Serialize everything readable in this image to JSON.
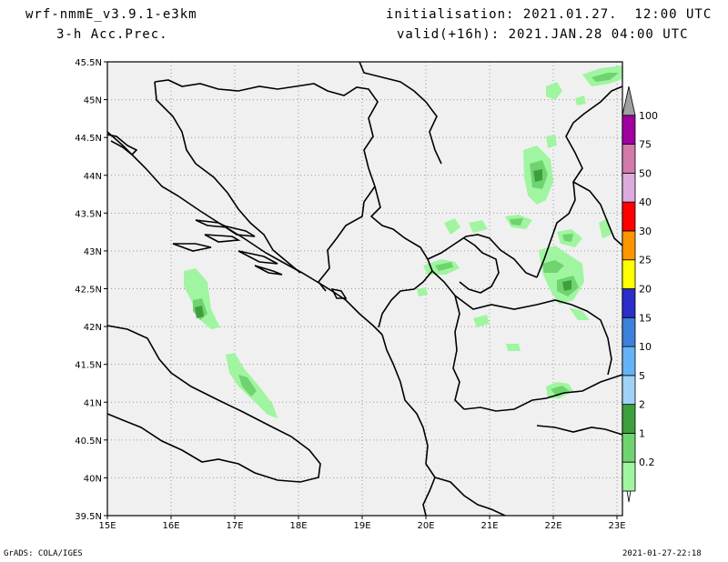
{
  "header": {
    "model": "wrf-nmmE_v3.9.1-e3km",
    "field": "3-h Acc.Prec.",
    "init": "initialisation: 2021.01.27.  12:00 UTC",
    "valid": "valid(+16h): 2021.JAN.28 04:00 UTC"
  },
  "footer": {
    "left": "GrADS: COLA/IGES",
    "right": "2021-01-27-22:18"
  },
  "map": {
    "lon_ticks": [
      "15E",
      "16E",
      "17E",
      "18E",
      "19E",
      "20E",
      "21E",
      "22E",
      "23E"
    ],
    "lat_ticks": [
      "39.5N",
      "40N",
      "40.5N",
      "41N",
      "41.5N",
      "42N",
      "42.5N",
      "43N",
      "43.5N",
      "44N",
      "44.5N",
      "45N",
      "45.5N"
    ],
    "background_color": "#f0f0f0"
  },
  "colorbar": {
    "levels": [
      "0.2",
      "1",
      "2",
      "5",
      "10",
      "15",
      "20",
      "25",
      "30",
      "40",
      "50",
      "75",
      "100"
    ],
    "colors": [
      "#a0f5a0",
      "#6fd46f",
      "#3da03d",
      "#a0d2f5",
      "#64b4f5",
      "#3c82dc",
      "#2d2dc8",
      "#ffff00",
      "#ff9600",
      "#ff0000",
      "#dcaadc",
      "#d27aaa",
      "#a000a0",
      "#a0a0a0"
    ]
  }
}
